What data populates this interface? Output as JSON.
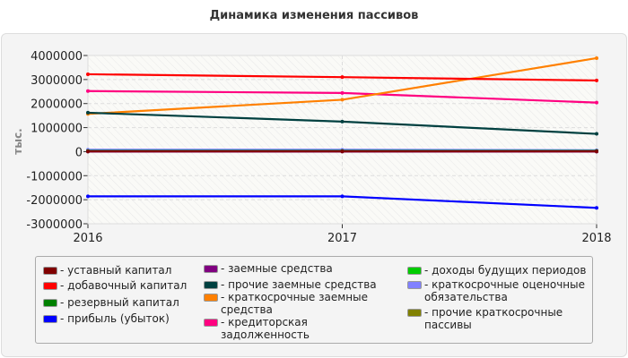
{
  "chart_data": {
    "type": "line",
    "title": "Динамика изменения пассивов",
    "ylabel": "тыс.",
    "xlabel": "",
    "categories": [
      "2016",
      "2017",
      "2018"
    ],
    "ylim": [
      -3000000,
      4000000
    ],
    "yticks": [
      "4000000",
      "3000000",
      "2000000",
      "1000000",
      "0",
      "-1000000",
      "-2000000",
      "-3000000"
    ],
    "grid": true,
    "legend_position": "bottom",
    "series": [
      {
        "name": "- уставный капитал",
        "color": "#800000",
        "values": [
          10000,
          10000,
          10000
        ]
      },
      {
        "name": "- добавочный капитал",
        "color": "#ff0000",
        "values": [
          3220000,
          3100000,
          2960000
        ]
      },
      {
        "name": "- резервный капитал",
        "color": "#008000",
        "values": [
          30000,
          30000,
          30000
        ]
      },
      {
        "name": "- прибыль (убыток)",
        "color": "#0000ff",
        "values": [
          -1860000,
          -1860000,
          -2340000
        ]
      },
      {
        "name": "- заемные средства",
        "color": "#800080",
        "values": [
          0,
          0,
          0
        ]
      },
      {
        "name": "- прочие заемные средства",
        "color": "#004040",
        "values": [
          1620000,
          1250000,
          740000
        ]
      },
      {
        "name": "- краткосрочные заемные средства",
        "color": "#ff8000",
        "values": [
          1570000,
          2160000,
          3890000
        ]
      },
      {
        "name": "- кредиторская задолженность",
        "color": "#ff0080",
        "values": [
          2520000,
          2440000,
          2040000
        ]
      },
      {
        "name": "- доходы будущих периодов",
        "color": "#00cc00",
        "values": [
          20000,
          20000,
          20000
        ]
      },
      {
        "name": "- краткосрочные оценочные обязательства",
        "color": "#8080ff",
        "values": [
          80000,
          80000,
          60000
        ]
      },
      {
        "name": "- прочие краткосрочные пассивы",
        "color": "#808000",
        "values": [
          0,
          0,
          0
        ]
      }
    ]
  }
}
